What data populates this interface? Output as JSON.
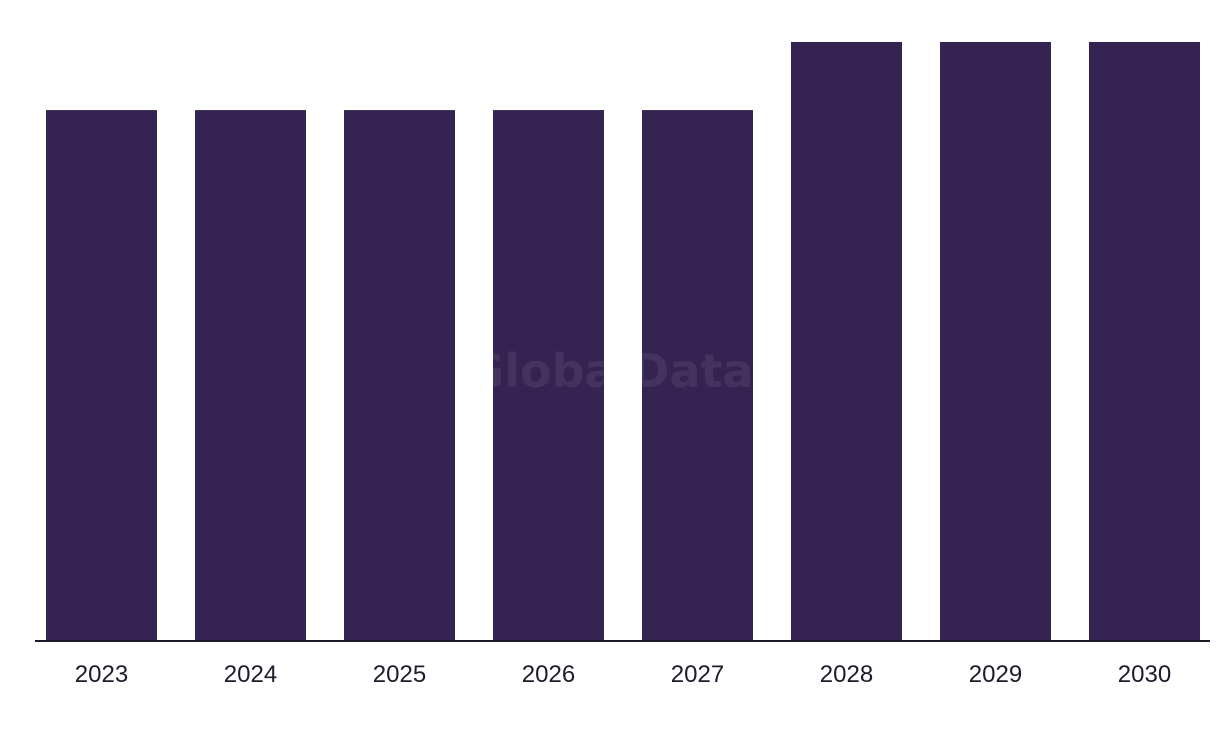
{
  "chart_data": {
    "type": "bar",
    "title": "",
    "xlabel": "",
    "ylabel": "",
    "categories": [
      "2023",
      "2024",
      "2025",
      "2026",
      "2027",
      "2028",
      "2029",
      "2030"
    ],
    "values": [
      7.8,
      7.8,
      7.8,
      7.8,
      7.8,
      8.8,
      8.8,
      8.8
    ],
    "ylim": [
      0,
      8.8
    ],
    "grid": false,
    "legend": "none",
    "bar_color": "#352452",
    "axis_color": "#1c1c2a"
  },
  "watermark": "GlobalData"
}
